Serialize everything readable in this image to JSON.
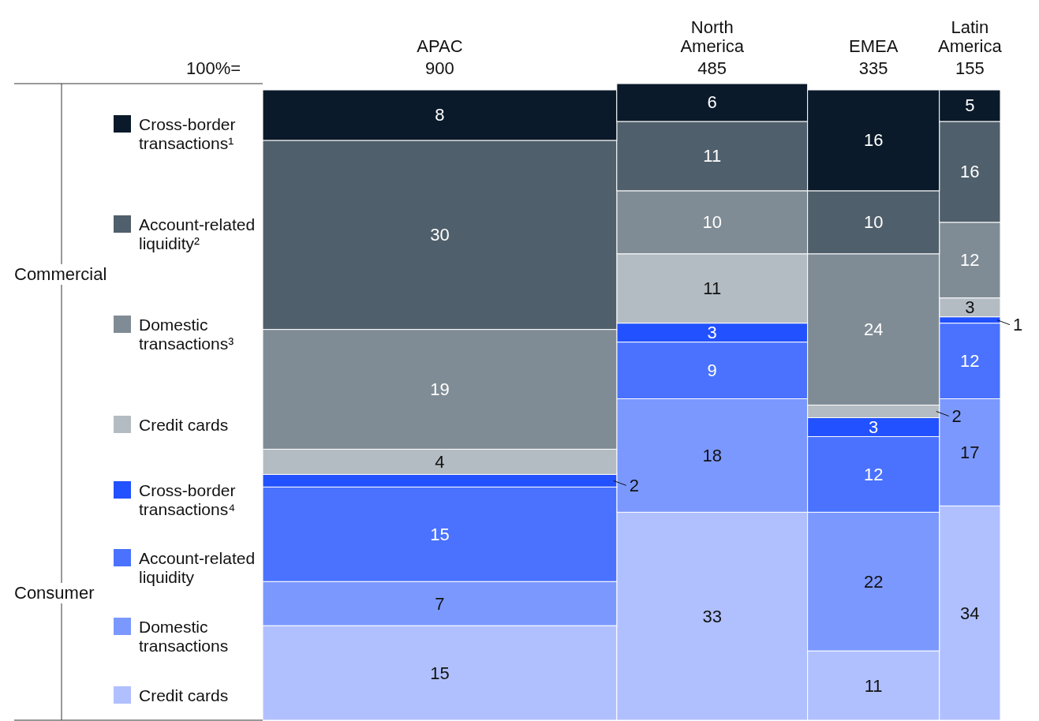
{
  "chart_data": {
    "type": "bar",
    "stacked": true,
    "data_labels": true,
    "legend": "left",
    "categories": [
      "APAC",
      "North America",
      "EMEA",
      "Latin America"
    ],
    "annotations": [
      "100%=",
      "Commercial",
      "Consumer",
      "900",
      "485",
      "335",
      "155"
    ],
    "series": [
      {
        "name": "Credit cards",
        "color": "#b0c0ff",
        "values": [
          15,
          33,
          11,
          34
        ]
      },
      {
        "name": "Domestic transactions",
        "color": "#7b98ff",
        "values": [
          7,
          18,
          22,
          17
        ]
      },
      {
        "name": "Account-related liquidity",
        "color": "#4a72ff",
        "values": [
          15,
          9,
          12,
          12
        ]
      },
      {
        "name": "Cross-border transactions⁴",
        "color": "#2251ff",
        "values": [
          2,
          3,
          3,
          1
        ]
      },
      {
        "name": "Credit cards",
        "color": "#b4bcc3",
        "values": [
          4,
          11,
          2,
          3
        ]
      },
      {
        "name": "Domestic transactions³",
        "color": "#808c95",
        "values": [
          19,
          10,
          24,
          12
        ]
      },
      {
        "name": "Account-related liquidity²",
        "color": "#4f5f6b",
        "values": [
          30,
          11,
          10,
          16
        ]
      },
      {
        "name": "Cross-border transactions¹",
        "color": "#0a1a2a",
        "values": [
          8,
          6,
          16,
          5
        ]
      }
    ]
  }
}
